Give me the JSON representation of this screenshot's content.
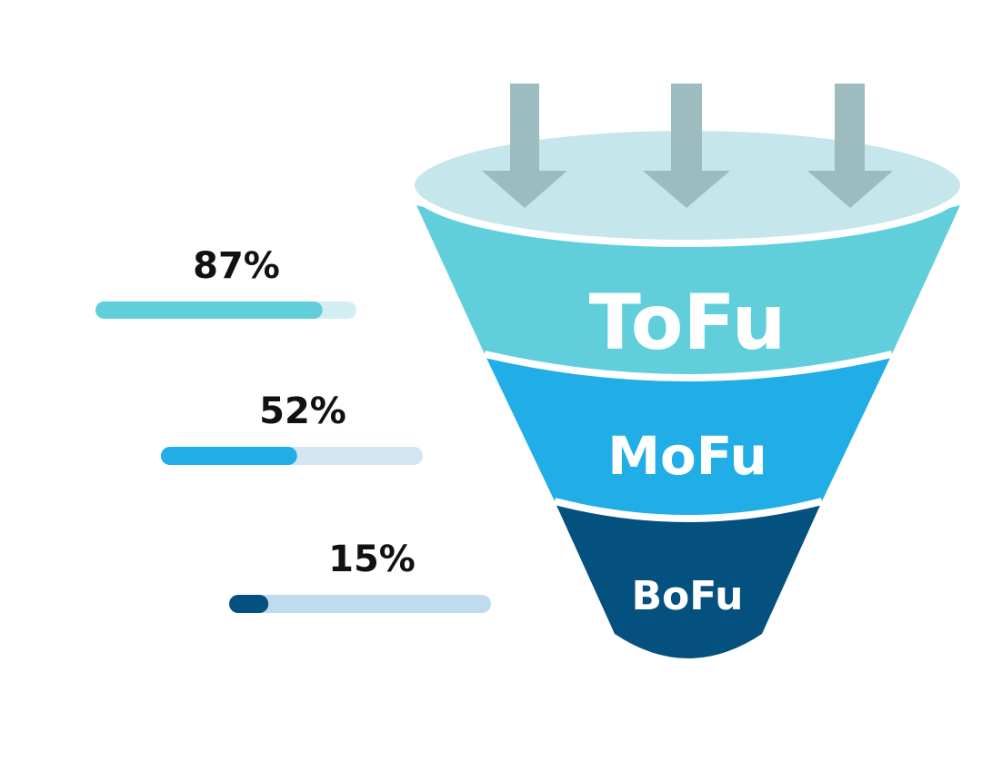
{
  "colors": {
    "background": "#ffffff",
    "ellipse_top": "#c5e6ea",
    "arrow": "#9dbcc0",
    "divider": "#ffffff",
    "text_dark": "#111111",
    "text_light": "#ffffff"
  },
  "arrows": [
    {
      "icon": "down-arrow-icon"
    },
    {
      "icon": "down-arrow-icon"
    },
    {
      "icon": "down-arrow-icon"
    }
  ],
  "stages": [
    {
      "label": "ToFu",
      "color": "#60cfdb"
    },
    {
      "label": "MoFu",
      "color": "#21ade5"
    },
    {
      "label": "BoFu",
      "color": "#04507f"
    }
  ],
  "metrics": [
    {
      "label": "87%",
      "value": 0.87,
      "fill_color": "#60cfdb",
      "track_color": "#d3eef2"
    },
    {
      "label": "52%",
      "value": 0.52,
      "fill_color": "#21ade5",
      "track_color": "#d2e6f2"
    },
    {
      "label": "15%",
      "value": 0.15,
      "fill_color": "#04507f",
      "track_color": "#c0dbee"
    }
  ]
}
